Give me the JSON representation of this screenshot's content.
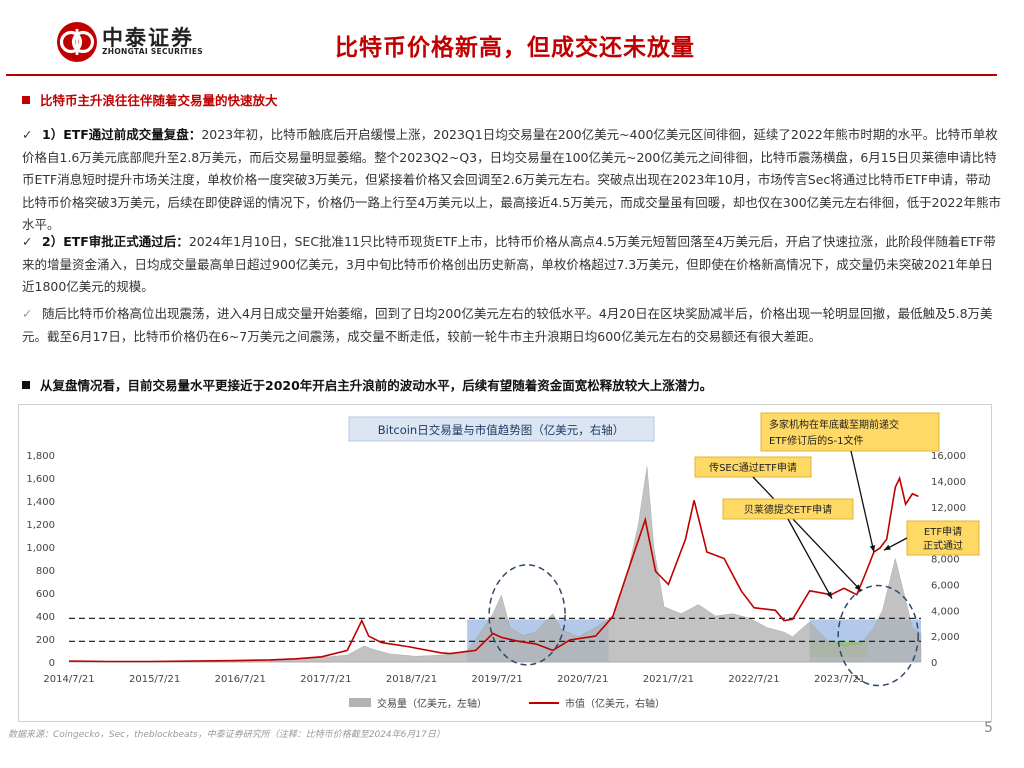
{
  "header": {
    "logo_cn": "中泰证券",
    "logo_en": "ZHONGTAI SECURITIES",
    "title": "比特币价格新高，但成交还未放量"
  },
  "colors": {
    "brand_red": "#c00000",
    "volume_gray": "#b3b3b3",
    "price_red": "#c00000",
    "highlight_blue": "#9fbbe3",
    "highlight_green": "#8fbf6a",
    "callout_yellow": "#ffd966",
    "dashed_circle": "#2e4a6b"
  },
  "content": {
    "section1": "比特币主升浪往往伴随着交易量的快速放大",
    "p1_lead": "1）ETF通过前成交量复盘：",
    "p1_body": "2023年初，比特币触底后开启缓慢上涨，2023Q1日均交易量在200亿美元~400亿美元区间徘徊，延续了2022年熊市时期的水平。比特币单枚价格自1.6万美元底部爬升至2.8万美元，而后交易量明显萎缩。整个2023Q2~Q3，日均交易量在100亿美元~200亿美元之间徘徊，比特币震荡横盘，6月15日贝莱德申请比特币ETF消息短时提升市场关注度，单枚价格一度突破3万美元，但紧接着价格又会回调至2.6万美元左右。突破点出现在2023年10月，市场传言Sec将通过比特币ETF申请，带动比特币价格突破3万美元，后续在即使辟谣的情况下，价格仍一路上行至4万美元以上，最高接近4.5万美元，而成交量虽有回暖，却也仅在300亿美元左右徘徊，低于2022年熊市水平。",
    "p2_lead": "2）ETF审批正式通过后：",
    "p2_body": "2024年1月10日，SEC批准11只比特币现货ETF上市，比特币价格从高点4.5万美元短暂回落至4万美元后，开启了快速拉涨，此阶段伴随着ETF带来的增量资金涌入，日均成交量最高单日超过900亿美元，3月中旬比特币价格创出历史新高，单枚价格超过7.3万美元，但即使在价格新高情况下，成交量仍未突破2021年单日近1800亿美元的规模。",
    "p3_body": "随后比特币价格高位出现震荡，进入4月日成交量开始萎缩，回到了日均200亿美元左右的较低水平。4月20日在区块奖励减半后，价格出现一轮明显回撤，最低触及5.8万美元。截至6月17日，比特币价格仍在6~7万美元之间震荡，成交量不断走低，较前一轮牛市主升浪期日均600亿美元左右的交易额还有很大差距。",
    "section2": "从复盘情况看，目前交易量水平更接近于2020年开启主升浪前的波动水平，后续有望随着资金面宽松释放较大上涨潜力。",
    "checkmark": "✓"
  },
  "footer": {
    "source": "数据来源：Coingecko，Sec，theblockbeats，中泰证券研究所（注释：比特币价格截至2024年6月17日）",
    "page": "5"
  },
  "chart_data": {
    "type": "area",
    "title": "Bitcoin日交易量与市值趋势图（亿美元，右轴）",
    "x_ticks": [
      "2014/7/21",
      "2015/7/21",
      "2016/7/21",
      "2017/7/21",
      "2018/7/21",
      "2019/7/21",
      "2020/7/21",
      "2021/7/21",
      "2022/7/21",
      "2023/7/21"
    ],
    "x_range": [
      2014.55,
      2024.5
    ],
    "left_axis": {
      "ticks": [
        "0",
        "200",
        "400",
        "600",
        "800",
        "1,000",
        "1,200",
        "1,400",
        "1,600",
        "1,800"
      ],
      "range": [
        0,
        1800
      ]
    },
    "right_axis": {
      "ticks": [
        "0",
        "2,000",
        "4,000",
        "6,000",
        "8,000",
        "10,000",
        "12,000",
        "14,000",
        "16,000"
      ],
      "range": [
        0,
        16000
      ]
    },
    "reference_lines": [
      {
        "value": 380
      },
      {
        "value": 180
      }
    ],
    "legend": {
      "position": "bottom",
      "items": [
        "交易量（亿美元，左轴）",
        "市值（亿美元，右轴）"
      ]
    },
    "series": [
      {
        "name": "交易量（亿美元，左轴）",
        "axis": "left",
        "style": "area",
        "points": [
          [
            2014.55,
            2
          ],
          [
            2015.0,
            2
          ],
          [
            2015.5,
            3
          ],
          [
            2016.0,
            5
          ],
          [
            2016.5,
            8
          ],
          [
            2016.9,
            10
          ],
          [
            2017.2,
            20
          ],
          [
            2017.5,
            40
          ],
          [
            2017.8,
            60
          ],
          [
            2017.95,
            120
          ],
          [
            2018.0,
            140
          ],
          [
            2018.1,
            110
          ],
          [
            2018.3,
            70
          ],
          [
            2018.6,
            50
          ],
          [
            2018.9,
            60
          ],
          [
            2019.0,
            70
          ],
          [
            2019.2,
            100
          ],
          [
            2019.35,
            250
          ],
          [
            2019.5,
            420
          ],
          [
            2019.6,
            580
          ],
          [
            2019.7,
            300
          ],
          [
            2019.85,
            230
          ],
          [
            2020.0,
            260
          ],
          [
            2020.2,
            420
          ],
          [
            2020.3,
            280
          ],
          [
            2020.5,
            220
          ],
          [
            2020.7,
            300
          ],
          [
            2020.9,
            400
          ],
          [
            2021.05,
            700
          ],
          [
            2021.2,
            1200
          ],
          [
            2021.3,
            1700
          ],
          [
            2021.38,
            1000
          ],
          [
            2021.5,
            480
          ],
          [
            2021.7,
            420
          ],
          [
            2021.9,
            500
          ],
          [
            2022.1,
            400
          ],
          [
            2022.3,
            420
          ],
          [
            2022.5,
            380
          ],
          [
            2022.7,
            300
          ],
          [
            2022.9,
            260
          ],
          [
            2023.0,
            220
          ],
          [
            2023.2,
            350
          ],
          [
            2023.4,
            190
          ],
          [
            2023.6,
            140
          ],
          [
            2023.8,
            160
          ],
          [
            2023.95,
            300
          ],
          [
            2024.05,
            450
          ],
          [
            2024.2,
            900
          ],
          [
            2024.3,
            600
          ],
          [
            2024.4,
            300
          ],
          [
            2024.5,
            250
          ]
        ]
      },
      {
        "name": "市值（亿美元，右轴）",
        "axis": "right",
        "style": "line",
        "points": [
          [
            2014.55,
            80
          ],
          [
            2015.0,
            40
          ],
          [
            2015.5,
            40
          ],
          [
            2016.0,
            70
          ],
          [
            2016.5,
            110
          ],
          [
            2016.9,
            160
          ],
          [
            2017.2,
            250
          ],
          [
            2017.5,
            400
          ],
          [
            2017.8,
            900
          ],
          [
            2017.97,
            3200
          ],
          [
            2018.05,
            2000
          ],
          [
            2018.2,
            1500
          ],
          [
            2018.5,
            1200
          ],
          [
            2018.9,
            700
          ],
          [
            2019.0,
            650
          ],
          [
            2019.3,
            900
          ],
          [
            2019.5,
            2200
          ],
          [
            2019.6,
            1900
          ],
          [
            2019.8,
            1600
          ],
          [
            2020.0,
            1400
          ],
          [
            2020.2,
            900
          ],
          [
            2020.4,
            1700
          ],
          [
            2020.7,
            2000
          ],
          [
            2020.9,
            3500
          ],
          [
            2021.05,
            6500
          ],
          [
            2021.28,
            11000
          ],
          [
            2021.4,
            7000
          ],
          [
            2021.55,
            6000
          ],
          [
            2021.75,
            9500
          ],
          [
            2021.85,
            12500
          ],
          [
            2022.0,
            8500
          ],
          [
            2022.2,
            8000
          ],
          [
            2022.4,
            5500
          ],
          [
            2022.55,
            4200
          ],
          [
            2022.8,
            4000
          ],
          [
            2022.9,
            3200
          ],
          [
            2023.0,
            3300
          ],
          [
            2023.2,
            5500
          ],
          [
            2023.45,
            5200
          ],
          [
            2023.6,
            5700
          ],
          [
            2023.75,
            5200
          ],
          [
            2023.85,
            6800
          ],
          [
            2023.95,
            8500
          ],
          [
            2024.02,
            8800
          ],
          [
            2024.1,
            9500
          ],
          [
            2024.2,
            13500
          ],
          [
            2024.25,
            14200
          ],
          [
            2024.32,
            12200
          ],
          [
            2024.4,
            13000
          ],
          [
            2024.47,
            12800
          ]
        ]
      }
    ],
    "callouts": [
      {
        "text": "多家机构在年底截至期前递交ETF修订后的S-1文件",
        "line1": "多家机构在年底截至期前递交",
        "line2": "ETF修订后的S-1文件",
        "target_x": 2023.95,
        "target_axis": "right",
        "target_value": 8500
      },
      {
        "text": "传SEC通过ETF申请",
        "target_x": 2023.8,
        "target_axis": "right",
        "target_value": 5500
      },
      {
        "text": "贝莱德提交ETF申请",
        "target_x": 2023.46,
        "target_axis": "right",
        "target_value": 4900
      },
      {
        "text": "ETF申请正式通过",
        "line1": "ETF申请",
        "line2": "正式通过",
        "target_x": 2024.02,
        "target_axis": "right",
        "target_value": 8800
      }
    ],
    "highlights": [
      {
        "color": "blue",
        "from": 2019.2,
        "to": 2020.85,
        "value_low": 0,
        "value_high": 370
      },
      {
        "color": "blue",
        "from": 2023.2,
        "to": 2024.5,
        "value_low": 0,
        "value_high": 370
      },
      {
        "color": "green",
        "from": 2023.2,
        "to": 2023.88,
        "value_low": 40,
        "value_high": 175
      }
    ],
    "circles": [
      {
        "x": 2019.9,
        "y": 410
      },
      {
        "x": 2024.0,
        "y": 230
      }
    ]
  }
}
